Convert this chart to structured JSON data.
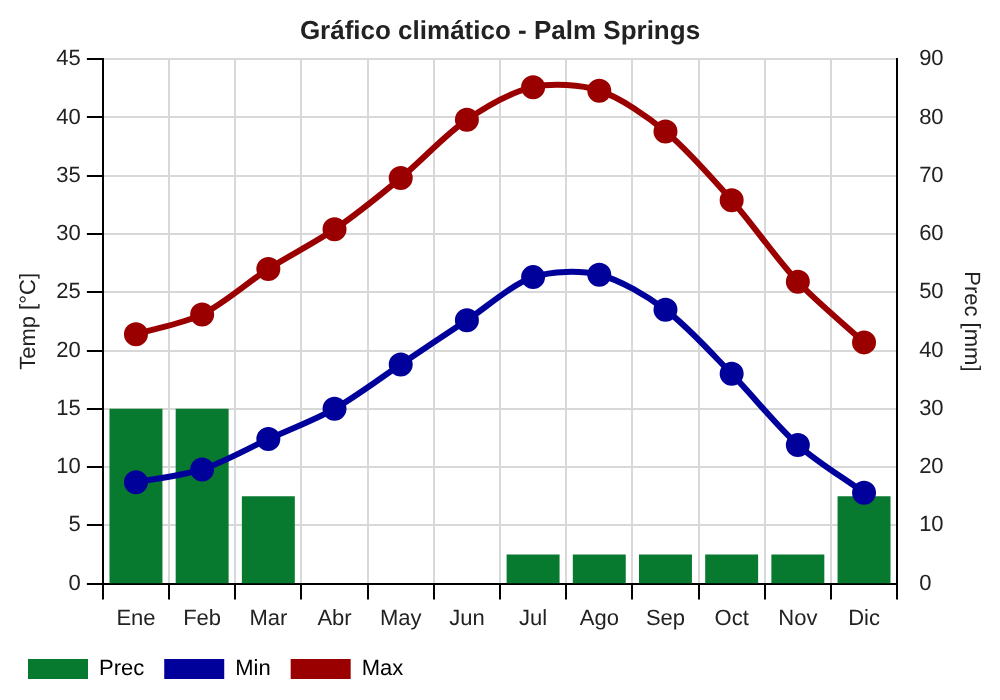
{
  "chart_data": {
    "type": "line",
    "title": "Gráfico climático - Palm Springs",
    "ylabel": "Temp [°C]",
    "y2label": "Prec [mm]",
    "categories": [
      "Ene",
      "Feb",
      "Mar",
      "Abr",
      "May",
      "Jun",
      "Jul",
      "Ago",
      "Sep",
      "Oct",
      "Nov",
      "Dic"
    ],
    "series": [
      {
        "name": "Prec",
        "type": "bar",
        "axis": "y2",
        "color": "#077a2f",
        "values": [
          30,
          30,
          15,
          0,
          0,
          0,
          5,
          5,
          5,
          5,
          5,
          15
        ]
      },
      {
        "name": "Min",
        "color": "#00009a",
        "values": [
          8.7,
          9.8,
          12.4,
          15.0,
          18.8,
          22.6,
          26.3,
          26.5,
          23.5,
          18.0,
          11.9,
          7.8
        ]
      },
      {
        "name": "Max",
        "color": "#9b0000",
        "values": [
          21.4,
          23.1,
          27.0,
          30.4,
          34.8,
          39.8,
          42.6,
          42.3,
          38.8,
          32.9,
          25.9,
          20.7
        ]
      }
    ],
    "ylim": [
      0,
      45
    ],
    "yticks": [
      0,
      5,
      10,
      15,
      20,
      25,
      30,
      35,
      40,
      45
    ],
    "y2lim": [
      0,
      90
    ],
    "y2ticks": [
      0,
      10,
      20,
      30,
      40,
      50,
      60,
      70,
      80,
      90
    ],
    "grid": true,
    "legend": "bottom left",
    "marker": "circle",
    "line_style": "solid"
  }
}
